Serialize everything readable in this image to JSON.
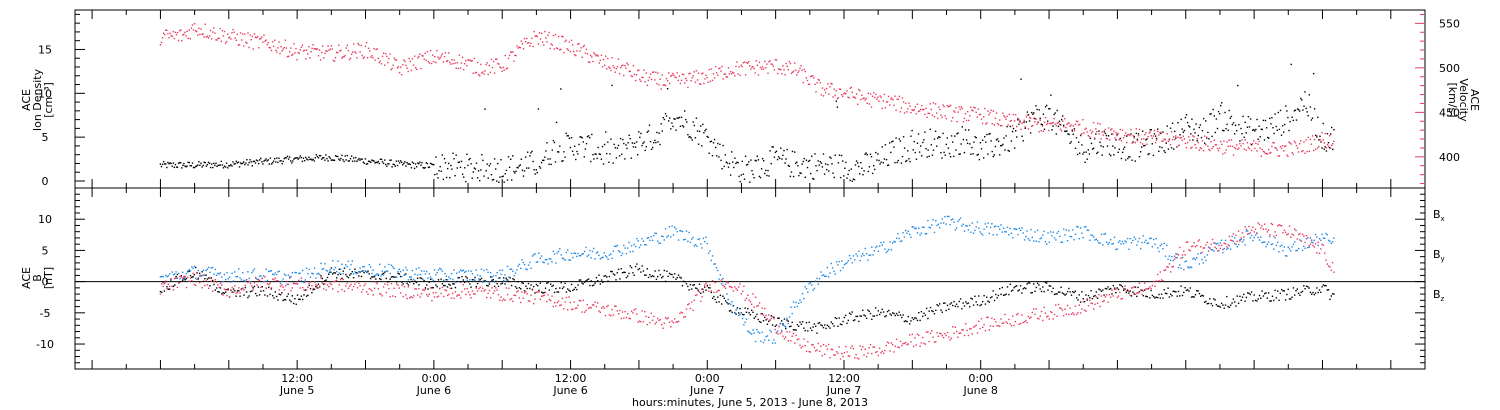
{
  "chart_data": [
    {
      "type": "scatter",
      "panel": "plasma",
      "ylabel_left": [
        "ACE",
        "Ion Density",
        "[cm⁻³]"
      ],
      "ylabel_right": [
        "ACE",
        "Velocity",
        "[km/s]"
      ],
      "ylim_left": [
        -0.8,
        19.5
      ],
      "ylim_right": [
        365,
        565
      ],
      "yticks_left": [
        "0",
        "5",
        "10",
        "15"
      ],
      "yticks_right": [
        "400",
        "450",
        "500",
        "550"
      ],
      "series": [
        {
          "axis": "left",
          "color": "#000000",
          "x": [
            0,
            6,
            12,
            18,
            24,
            30,
            36,
            42,
            48,
            54,
            60,
            63,
            66,
            69,
            72,
            75,
            78,
            81,
            84,
            87,
            90,
            93,
            96,
            99,
            102,
            105,
            108,
            111,
            114,
            117,
            120,
            123,
            126,
            129,
            132,
            135,
            138,
            141,
            144,
            147,
            150,
            153,
            156,
            159,
            162,
            165,
            168,
            171,
            174,
            177,
            180,
            183,
            186,
            189,
            192,
            195,
            198,
            201,
            204,
            206
          ],
          "y": [
            1.8,
            1.8,
            1.9,
            2.2,
            2.5,
            2.7,
            2.3,
            1.9,
            1.7,
            1.5,
            1.4,
            1.6,
            2.0,
            3.6,
            4.0,
            3.9,
            3.1,
            3.4,
            4.5,
            5.1,
            7.5,
            6.4,
            5.0,
            2.6,
            1.3,
            1.5,
            2.5,
            1.9,
            1.8,
            1.7,
            1.6,
            1.5,
            2.1,
            3.4,
            3.8,
            4.4,
            4.0,
            4.8,
            3.5,
            4.2,
            5.0,
            7.2,
            7.5,
            5.4,
            3.6,
            4.6,
            4.1,
            3.8,
            4.4,
            4.8,
            6.2,
            5.6,
            7.5,
            6.2,
            5.6,
            6.1,
            7.2,
            9.2,
            5.0,
            4.8
          ]
        },
        {
          "axis": "right",
          "color": "#e8395f",
          "x": [
            0,
            4,
            6,
            10,
            16,
            20,
            24,
            30,
            36,
            40,
            42,
            44,
            48,
            52,
            56,
            60,
            63,
            66,
            70,
            74,
            78,
            82,
            84,
            88,
            92,
            96,
            100,
            104,
            108,
            112,
            116,
            120,
            124,
            128,
            132,
            136,
            140,
            144,
            148,
            152,
            156,
            160,
            164,
            168,
            172,
            176,
            180,
            184,
            188,
            192,
            196,
            200,
            204,
            206
          ],
          "y": [
            535,
            536,
            545,
            538,
            530,
            526,
            518,
            516,
            520,
            508,
            498,
            505,
            512,
            508,
            500,
            502,
            520,
            535,
            528,
            518,
            505,
            498,
            490,
            485,
            486,
            490,
            498,
            500,
            502,
            496,
            476,
            472,
            465,
            462,
            455,
            452,
            448,
            447,
            440,
            438,
            435,
            436,
            430,
            427,
            422,
            420,
            418,
            414,
            411,
            410,
            408,
            410,
            420,
            415
          ]
        }
      ]
    },
    {
      "type": "scatter",
      "panel": "magnetic-field",
      "ylabel_left": [
        "ACE",
        "B",
        "[nT]"
      ],
      "ylim": [
        -14,
        15
      ],
      "yticks": [
        "-10",
        "-5",
        "0",
        "5",
        "10"
      ],
      "legend": [
        "Bx",
        "By",
        "Bz"
      ],
      "legend_placement": "right",
      "zero_line": true,
      "series": [
        {
          "name": "Bx",
          "color": "#000000",
          "x": [
            0,
            6,
            12,
            18,
            24,
            30,
            36,
            42,
            48,
            54,
            60,
            66,
            72,
            78,
            84,
            90,
            96,
            100,
            104,
            108,
            112,
            116,
            120,
            126,
            132,
            138,
            144,
            150,
            156,
            162,
            168,
            174,
            180,
            186,
            192,
            198,
            204,
            206
          ],
          "y": [
            -1.0,
            1.5,
            -2.0,
            -1.5,
            -3.0,
            1.5,
            1.0,
            0.5,
            -0.5,
            0.0,
            0.0,
            -1.0,
            -1.0,
            0.5,
            2.0,
            0.5,
            -1.5,
            -4.0,
            -5.5,
            -6.5,
            -7.0,
            -7.5,
            -6.0,
            -5.0,
            -6.0,
            -4.0,
            -3.0,
            -1.0,
            -1.0,
            -2.5,
            -1.0,
            -2.0,
            -1.5,
            -3.5,
            -2.5,
            -2.0,
            -1.0,
            -2.5
          ]
        },
        {
          "name": "By",
          "color": "#1e88e5",
          "x": [
            0,
            6,
            12,
            18,
            24,
            30,
            36,
            42,
            48,
            54,
            60,
            66,
            72,
            78,
            84,
            90,
            96,
            100,
            104,
            108,
            112,
            116,
            120,
            126,
            132,
            138,
            144,
            150,
            156,
            162,
            168,
            174,
            180,
            186,
            192,
            198,
            204,
            206
          ],
          "y": [
            0.5,
            1.5,
            1.0,
            1.0,
            0.5,
            2.5,
            2.0,
            1.5,
            1.0,
            1.0,
            1.0,
            3.5,
            4.5,
            4.5,
            6.0,
            8.0,
            6.0,
            -3.0,
            -8.5,
            -9.0,
            -3.0,
            1.0,
            3.0,
            5.0,
            8.0,
            9.5,
            8.5,
            8.0,
            7.0,
            8.0,
            6.0,
            6.5,
            2.5,
            5.5,
            7.5,
            5.0,
            7.0,
            6.0
          ]
        },
        {
          "name": "Bz",
          "color": "#e8395f",
          "x": [
            0,
            6,
            12,
            18,
            24,
            30,
            36,
            42,
            48,
            54,
            60,
            66,
            72,
            78,
            84,
            90,
            96,
            100,
            104,
            108,
            112,
            116,
            120,
            126,
            132,
            138,
            144,
            150,
            156,
            162,
            168,
            174,
            180,
            186,
            192,
            198,
            204,
            206
          ],
          "y": [
            -1.0,
            0.5,
            -1.5,
            0.0,
            -0.5,
            -0.5,
            -1.0,
            -1.5,
            -2.0,
            -1.5,
            -2.0,
            -2.5,
            -3.5,
            -4.5,
            -5.5,
            -7.0,
            -1.0,
            0.0,
            -3.0,
            -7.0,
            -10.0,
            -11.0,
            -11.5,
            -11.0,
            -9.5,
            -8.5,
            -7.0,
            -6.0,
            -5.0,
            -4.0,
            -2.0,
            -1.0,
            5.5,
            6.0,
            8.5,
            8.0,
            5.0,
            2.0
          ]
        }
      ],
      "x_axis": {
        "range_hours": [
          -15,
          222
        ],
        "major_ticks": [
          12,
          36,
          60,
          84,
          108,
          132,
          156,
          180,
          204
        ],
        "tick_labels": [
          {
            "time": "12:00",
            "day": "June 5"
          },
          {
            "time": "0:00",
            "day": "June 6"
          },
          {
            "time": "12:00",
            "day": "June 6"
          },
          {
            "time": "0:00",
            "day": "June 7"
          },
          {
            "time": "12:00",
            "day": "June 7"
          },
          {
            "time": "0:00",
            "day": "June 8"
          }
        ],
        "labeled_ticks": [
          24,
          48,
          72,
          96,
          120,
          144
        ],
        "title": "hours:minutes, June  5, 2013 - June  8, 2013"
      }
    }
  ]
}
